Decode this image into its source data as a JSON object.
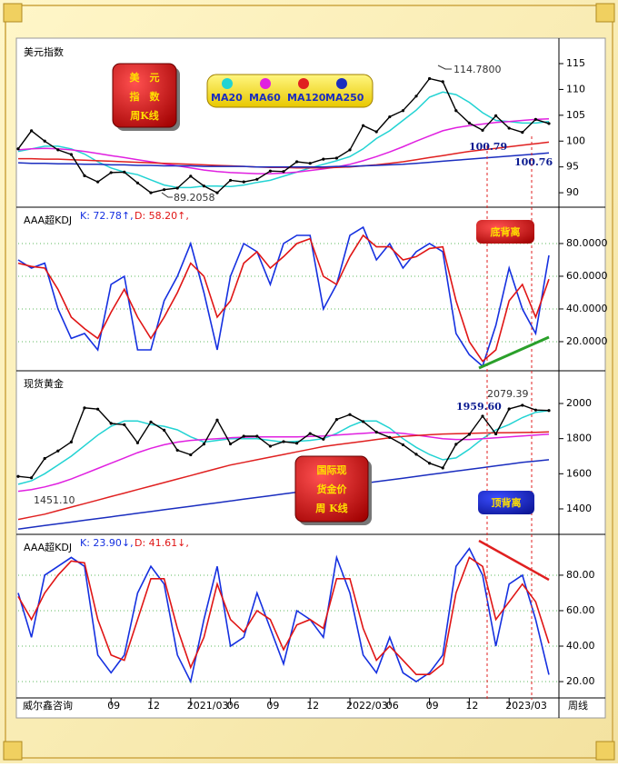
{
  "chart_data": [
    {
      "type": "line",
      "title": "美元指数",
      "color": "#000000",
      "values": [
        98.5,
        102.0,
        100.0,
        98.3,
        97.4,
        93.3,
        92.1,
        93.9,
        94.0,
        91.9,
        90.0,
        90.6,
        90.9,
        93.2,
        91.3,
        90.0,
        92.4,
        92.1,
        92.6,
        94.2,
        94.1,
        96.0,
        95.7,
        96.5,
        96.7,
        98.3,
        103.0,
        101.8,
        104.7,
        105.9,
        108.7,
        112.1,
        111.5,
        105.9,
        103.5,
        102.1,
        104.9,
        102.5,
        101.7,
        104.2,
        103.4
      ],
      "series": [
        {
          "name": "MA20",
          "color": "#22d3d3",
          "values": [
            98,
            98.5,
            99,
            99,
            98.5,
            97.5,
            96,
            94.8,
            94,
            93.5,
            92.5,
            91.5,
            91,
            91,
            91.3,
            91.3,
            91.2,
            91.5,
            92,
            92.4,
            93.2,
            94,
            94.8,
            95.5,
            96.2,
            97,
            98.5,
            100.5,
            102,
            104,
            106,
            108.5,
            109.5,
            109,
            107.5,
            105.5,
            104,
            103.8,
            103.5,
            103.5,
            103.8
          ]
        },
        {
          "name": "MA60",
          "color": "#e020e0",
          "values": [
            98.3,
            98.5,
            98.6,
            98.5,
            98.3,
            98,
            97.6,
            97.2,
            96.8,
            96.4,
            96,
            95.6,
            95.2,
            94.8,
            94.4,
            94.1,
            93.9,
            93.8,
            93.7,
            93.7,
            93.8,
            94,
            94.3,
            94.6,
            95,
            95.5,
            96.2,
            97,
            97.9,
            98.9,
            100,
            101,
            102,
            102.6,
            103,
            103.3,
            103.6,
            103.8,
            104,
            104.2,
            104.3
          ]
        },
        {
          "name": "MA120",
          "color": "#e02020",
          "values": [
            96.6,
            96.6,
            96.5,
            96.5,
            96.4,
            96.3,
            96.2,
            96.1,
            96,
            95.9,
            95.8,
            95.7,
            95.6,
            95.5,
            95.4,
            95.3,
            95.2,
            95.1,
            95,
            94.9,
            94.9,
            94.8,
            94.8,
            94.8,
            94.9,
            95,
            95.2,
            95.4,
            95.7,
            96,
            96.4,
            96.8,
            97.2,
            97.6,
            98,
            98.3,
            98.6,
            98.9,
            99.2,
            99.5,
            99.8
          ]
        },
        {
          "name": "MA250",
          "color": "#1a2dbf",
          "values": [
            95.8,
            95.7,
            95.7,
            95.6,
            95.6,
            95.5,
            95.5,
            95.4,
            95.4,
            95.3,
            95.3,
            95.2,
            95.2,
            95.2,
            95.1,
            95.1,
            95.1,
            95.1,
            95.0,
            95.0,
            95.0,
            95.0,
            95.0,
            95.0,
            95.1,
            95.1,
            95.2,
            95.3,
            95.4,
            95.5,
            95.7,
            95.9,
            96.1,
            96.3,
            96.5,
            96.7,
            96.9,
            97.1,
            97.3,
            97.5,
            97.7
          ]
        }
      ],
      "ylim": [
        87.2,
        119.4
      ],
      "yticks": [
        90,
        95,
        100,
        105,
        110,
        115
      ],
      "grid": false,
      "badge": [
        "美　元",
        "指　数",
        "周K线"
      ],
      "annotations": [
        "114.7800",
        "89.2058",
        "100.79",
        "100.76"
      ]
    },
    {
      "type": "line",
      "title": "AAA超KDJ",
      "series": [
        {
          "name": "K: 72.78↑,",
          "color": "#1530e0",
          "values": [
            70,
            65,
            68,
            40,
            22,
            25,
            15,
            55,
            60,
            15,
            15,
            45,
            60,
            80,
            50,
            15,
            60,
            80,
            75,
            55,
            80,
            85,
            85,
            40,
            55,
            85,
            90,
            70,
            80,
            65,
            75,
            80,
            75,
            25,
            12,
            5,
            30,
            65,
            40,
            25,
            72.78
          ]
        },
        {
          "name": "D: 58.20↑,",
          "color": "#e01515",
          "values": [
            68,
            66,
            65,
            52,
            35,
            28,
            22,
            38,
            52,
            35,
            22,
            35,
            50,
            68,
            60,
            35,
            45,
            68,
            75,
            65,
            72,
            80,
            83,
            60,
            55,
            72,
            85,
            78,
            78,
            70,
            72,
            77,
            78,
            45,
            20,
            8,
            15,
            45,
            55,
            35,
            58.2
          ]
        }
      ],
      "ylim": [
        2.2,
        101.1
      ],
      "yticks": [
        {
          "value": 20,
          "label": "20.0000"
        },
        {
          "value": 40,
          "label": "40.0000"
        },
        {
          "value": 60,
          "label": "60.0000"
        },
        {
          "value": 80,
          "label": "80.0000"
        }
      ],
      "grid": true,
      "annotations": [
        "底背离"
      ]
    },
    {
      "type": "line",
      "title": "现货黄金",
      "color": "#000000",
      "values": [
        1585,
        1577,
        1687,
        1730,
        1781,
        1975,
        1968,
        1887,
        1879,
        1776,
        1895,
        1848,
        1734,
        1708,
        1769,
        1906,
        1770,
        1814,
        1814,
        1757,
        1783,
        1774,
        1829,
        1797,
        1909,
        1937,
        1897,
        1837,
        1807,
        1765,
        1711,
        1660,
        1633,
        1768,
        1824,
        1928,
        1827,
        1969,
        1990,
        1963,
        1960
      ],
      "series": [
        {
          "color": "#22d3d3",
          "values": [
            1540,
            1560,
            1600,
            1650,
            1700,
            1760,
            1820,
            1870,
            1900,
            1900,
            1880,
            1870,
            1850,
            1810,
            1780,
            1790,
            1800,
            1800,
            1800,
            1790,
            1780,
            1785,
            1790,
            1800,
            1830,
            1870,
            1900,
            1900,
            1860,
            1800,
            1750,
            1710,
            1680,
            1690,
            1740,
            1800,
            1850,
            1880,
            1920,
            1950,
            1960
          ]
        },
        {
          "color": "#e020e0",
          "values": [
            1500,
            1510,
            1525,
            1545,
            1570,
            1600,
            1630,
            1660,
            1690,
            1720,
            1745,
            1765,
            1780,
            1790,
            1795,
            1800,
            1805,
            1808,
            1810,
            1810,
            1810,
            1810,
            1812,
            1815,
            1820,
            1825,
            1830,
            1835,
            1835,
            1830,
            1820,
            1810,
            1800,
            1795,
            1795,
            1800,
            1805,
            1810,
            1815,
            1820,
            1825
          ]
        },
        {
          "color": "#e02020",
          "values": [
            1340,
            1355,
            1370,
            1390,
            1410,
            1430,
            1450,
            1470,
            1490,
            1510,
            1530,
            1550,
            1570,
            1590,
            1610,
            1630,
            1650,
            1665,
            1680,
            1695,
            1710,
            1725,
            1740,
            1755,
            1765,
            1775,
            1785,
            1795,
            1805,
            1812,
            1818,
            1822,
            1826,
            1828,
            1830,
            1832,
            1833,
            1834,
            1835,
            1836,
            1838
          ]
        },
        {
          "color": "#1a2dbf",
          "values": [
            1285,
            1295,
            1305,
            1315,
            1325,
            1335,
            1345,
            1355,
            1365,
            1375,
            1385,
            1395,
            1405,
            1415,
            1425,
            1435,
            1445,
            1455,
            1465,
            1475,
            1485,
            1495,
            1505,
            1515,
            1525,
            1535,
            1545,
            1555,
            1565,
            1575,
            1585,
            1595,
            1605,
            1615,
            1625,
            1635,
            1645,
            1655,
            1665,
            1672,
            1680
          ]
        }
      ],
      "ylim": [
        1255,
        2176
      ],
      "yticks": [
        1400,
        1600,
        1800,
        2000
      ],
      "grid": false,
      "badge": [
        "国际现",
        "货金价",
        "周 K线"
      ],
      "annotations": [
        "2079.39",
        "1959.60",
        "1451.10",
        "顶背离"
      ]
    },
    {
      "type": "line",
      "title": "AAA超KDJ",
      "series": [
        {
          "name": "K: 23.90↓,",
          "color": "#1530e0",
          "values": [
            70,
            45,
            80,
            85,
            90,
            85,
            35,
            25,
            35,
            70,
            85,
            75,
            35,
            20,
            55,
            85,
            40,
            45,
            70,
            50,
            30,
            60,
            55,
            45,
            90,
            70,
            35,
            25,
            45,
            25,
            20,
            25,
            35,
            85,
            95,
            80,
            40,
            75,
            80,
            55,
            23.9
          ]
        },
        {
          "name": "D: 41.61↓,",
          "color": "#e01515",
          "values": [
            68,
            55,
            70,
            80,
            88,
            87,
            55,
            35,
            32,
            55,
            78,
            78,
            50,
            28,
            45,
            75,
            55,
            48,
            60,
            55,
            38,
            52,
            55,
            50,
            78,
            78,
            50,
            32,
            40,
            32,
            24,
            24,
            30,
            70,
            90,
            85,
            55,
            65,
            75,
            65,
            41.61
          ]
        }
      ],
      "ylim": [
        10.8,
        102
      ],
      "yticks": [
        {
          "value": 20,
          "label": "20.00"
        },
        {
          "value": 40,
          "label": "40.00"
        },
        {
          "value": 60,
          "label": "60.00"
        },
        {
          "value": 80,
          "label": "80.00"
        }
      ],
      "grid": true,
      "categories": [
        null,
        null,
        null,
        null,
        null,
        null,
        null,
        "09",
        null,
        null,
        "12",
        null,
        null,
        "2021/03",
        null,
        null,
        "06",
        null,
        null,
        "09",
        null,
        null,
        "12",
        null,
        null,
        "2022/03",
        null,
        null,
        "06",
        null,
        null,
        "09",
        null,
        null,
        "12",
        null,
        null,
        "2023/03",
        null,
        null,
        null
      ],
      "source": "威尔鑫咨询",
      "period": "周线"
    }
  ]
}
